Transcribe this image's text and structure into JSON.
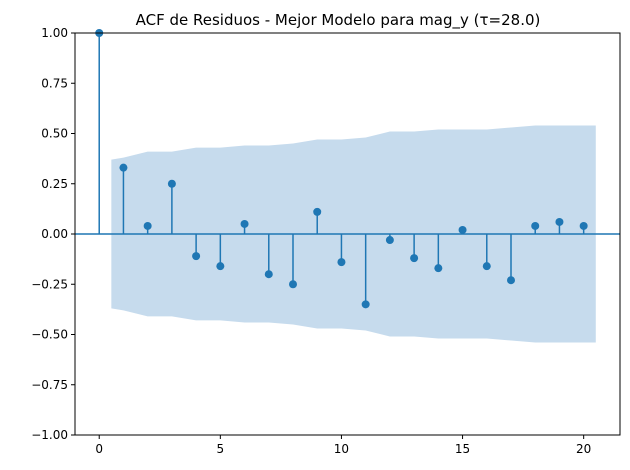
{
  "chart_data": {
    "type": "scatter",
    "subtype": "acf-stem",
    "title": "ACF de Residuos - Mejor Modelo para mag_y (τ=28.0)",
    "xlabel": "",
    "ylabel": "",
    "xlim": [
      -1,
      21.5
    ],
    "ylim": [
      -1.0,
      1.0
    ],
    "x_ticks": [
      0,
      5,
      10,
      15,
      20
    ],
    "y_ticks": [
      -1.0,
      -0.75,
      -0.5,
      -0.25,
      0.0,
      0.25,
      0.5,
      0.75,
      1.0
    ],
    "x_tick_labels": [
      "0",
      "5",
      "10",
      "15",
      "20"
    ],
    "y_tick_labels": [
      "−1.00",
      "−0.75",
      "−0.50",
      "−0.25",
      "0.00",
      "0.25",
      "0.50",
      "0.75",
      "1.00"
    ],
    "grid": false,
    "series": [
      {
        "lags": [
          0,
          1,
          2,
          3,
          4,
          5,
          6,
          7,
          8,
          9,
          10,
          11,
          12,
          13,
          14,
          15,
          16,
          17,
          18,
          19,
          20
        ],
        "values": [
          1.0,
          0.33,
          0.04,
          0.25,
          -0.11,
          -0.16,
          0.05,
          -0.2,
          -0.25,
          0.11,
          -0.14,
          -0.35,
          -0.03,
          -0.12,
          -0.17,
          0.02,
          -0.16,
          -0.23,
          0.04,
          0.06,
          0.04
        ]
      }
    ],
    "confidence_band": {
      "lags": [
        0.5,
        1,
        2,
        3,
        4,
        5,
        6,
        7,
        8,
        9,
        10,
        11,
        12,
        13,
        14,
        15,
        16,
        17,
        18,
        19,
        20,
        20.5
      ],
      "upper": [
        0.37,
        0.38,
        0.41,
        0.41,
        0.43,
        0.43,
        0.44,
        0.44,
        0.45,
        0.47,
        0.47,
        0.48,
        0.51,
        0.51,
        0.52,
        0.52,
        0.52,
        0.53,
        0.54,
        0.54,
        0.54,
        0.54
      ]
    },
    "colors": {
      "stem": "#1f77b4",
      "band": "#c6dbed",
      "zero_line": "#1f77b4",
      "axes": "#000000"
    }
  }
}
